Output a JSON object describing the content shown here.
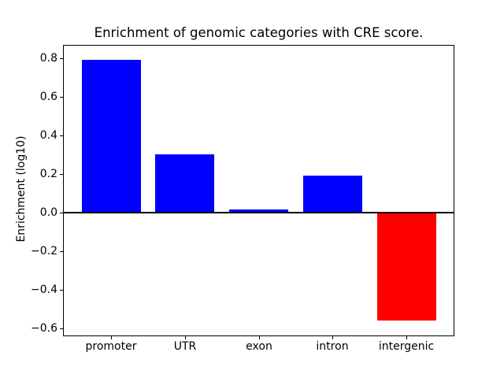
{
  "figure": {
    "background": "#ffffff"
  },
  "chart_data": {
    "type": "bar",
    "title": "Enrichment of genomic categories with CRE score.",
    "xlabel": "",
    "ylabel": "Enrichment (log10)",
    "categories": [
      "promoter",
      "UTR",
      "exon",
      "intron",
      "intergenic"
    ],
    "values": [
      0.79,
      0.3,
      0.016,
      0.19,
      -0.56
    ],
    "bar_colors": [
      "#0000ff",
      "#0000ff",
      "#0000ff",
      "#0000ff",
      "#ff0000"
    ],
    "positive_color": "#0000ff",
    "negative_color": "#ff0000",
    "axis_color": "#000000",
    "text_color": "#000000",
    "ylim": [
      -0.637,
      0.865
    ],
    "xlim": [
      -0.64,
      4.64
    ],
    "bar_width": 0.8,
    "yticks": [
      0.8,
      0.6,
      0.4,
      0.2,
      0.0,
      -0.2,
      -0.4,
      -0.6
    ],
    "ytick_labels": [
      "0.8",
      "0.6",
      "0.4",
      "0.2",
      "0.0",
      "−0.2",
      "−0.4",
      "−0.6"
    ],
    "grid": false,
    "zero_line": true,
    "legend_position": "none"
  }
}
